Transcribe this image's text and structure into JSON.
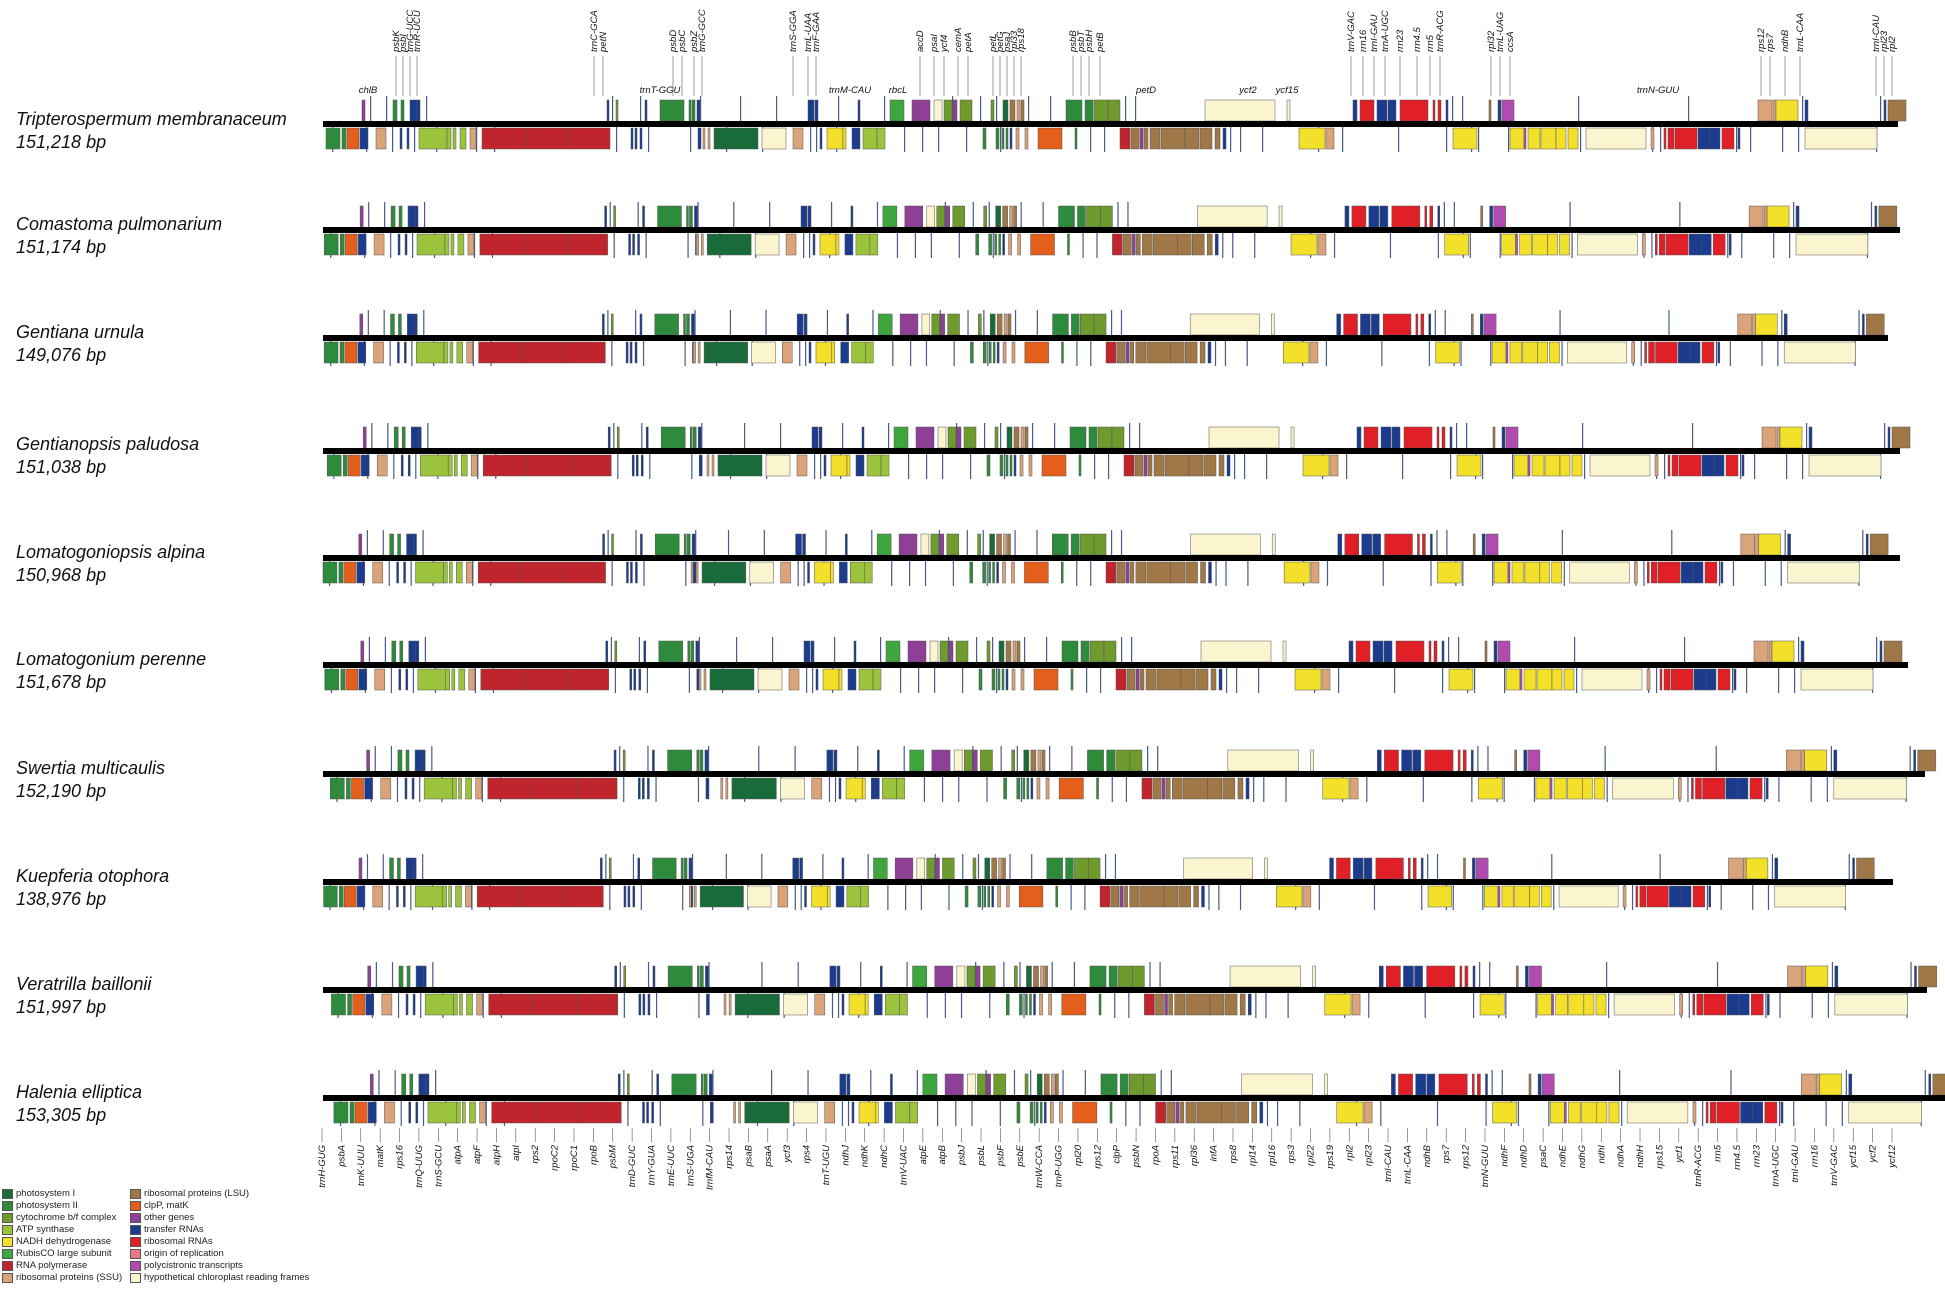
{
  "genomes": [
    {
      "name": "Tripterospermum membranaceum",
      "length": "151,218 bp"
    },
    {
      "name": "Comastoma pulmonarium",
      "length": "151,174 bp"
    },
    {
      "name": "Gentiana urnula",
      "length": "149,076 bp"
    },
    {
      "name": "Gentianopsis paludosa",
      "length": "151,038 bp"
    },
    {
      "name": "Lomatogoniopsis alpina",
      "length": "150,968 bp"
    },
    {
      "name": "Lomatogonium perenne",
      "length": "151,678 bp"
    },
    {
      "name": "Swertia multicaulis",
      "length": "152,190 bp"
    },
    {
      "name": "Kuepferia otophora",
      "length": "138,976 bp"
    },
    {
      "name": "Veratrilla baillonii",
      "length": "151,997 bp"
    },
    {
      "name": "Halenia elliptica",
      "length": "153,305 bp"
    }
  ],
  "legend": {
    "col1": [
      {
        "label": "photosystem I",
        "color": "#1a6b3a"
      },
      {
        "label": "photosystem II",
        "color": "#2e8b3c"
      },
      {
        "label": "cytochrome b/f complex",
        "color": "#6f9a2e"
      },
      {
        "label": "ATP synthase",
        "color": "#9bc43c"
      },
      {
        "label": "NADH dehydrogenase",
        "color": "#f2e02a"
      },
      {
        "label": "RubisCO large subunit",
        "color": "#3fa53f"
      },
      {
        "label": "RNA polymerase",
        "color": "#c0242d"
      },
      {
        "label": "ribosomal proteins (SSU)",
        "color": "#dba37a"
      }
    ],
    "col2": [
      {
        "label": "ribosomal proteins (LSU)",
        "color": "#a07848"
      },
      {
        "label": "clpP, matK",
        "color": "#e45f1c"
      },
      {
        "label": "other genes",
        "color": "#8e3f96"
      },
      {
        "label": "transfer RNAs",
        "color": "#1a3b8e"
      },
      {
        "label": "ribosomal RNAs",
        "color": "#e01f26"
      },
      {
        "label": "origin of replication",
        "color": "#e87b86"
      },
      {
        "label": "polycistronic transcripts",
        "color": "#b24bb0"
      },
      {
        "label": "hypothetical chloroplast reading frames",
        "color": "#fbf5cf"
      }
    ]
  },
  "top_labels": [
    {
      "text": "chlB",
      "orient": "h"
    },
    {
      "text": "psbK",
      "orient": "v"
    },
    {
      "text": "psbI",
      "orient": "v"
    },
    {
      "text": "trnG-UCC",
      "orient": "v"
    },
    {
      "text": "trnR-UCU",
      "orient": "v"
    },
    {
      "text": "trnC-GCA",
      "orient": "v"
    },
    {
      "text": "petN",
      "orient": "v"
    },
    {
      "text": "trnT-GGU",
      "orient": "h"
    },
    {
      "text": "psbD",
      "orient": "v"
    },
    {
      "text": "psbC",
      "orient": "v"
    },
    {
      "text": "psbZ",
      "orient": "v"
    },
    {
      "text": "trnG-GCC",
      "orient": "v"
    },
    {
      "text": "trnS-GGA",
      "orient": "v"
    },
    {
      "text": "trnL-UAA",
      "orient": "v"
    },
    {
      "text": "trnF-GAA",
      "orient": "v"
    },
    {
      "text": "trnM-CAU",
      "orient": "h"
    },
    {
      "text": "rbcL",
      "orient": "h"
    },
    {
      "text": "accD",
      "orient": "v"
    },
    {
      "text": "psaI",
      "orient": "v"
    },
    {
      "text": "ycf4",
      "orient": "v"
    },
    {
      "text": "cemA",
      "orient": "v"
    },
    {
      "text": "petA",
      "orient": "v"
    },
    {
      "text": "petL",
      "orient": "v"
    },
    {
      "text": "petG",
      "orient": "v"
    },
    {
      "text": "psaJ",
      "orient": "v"
    },
    {
      "text": "rpl33",
      "orient": "v"
    },
    {
      "text": "rps18",
      "orient": "v"
    },
    {
      "text": "psbB",
      "orient": "v"
    },
    {
      "text": "psbT",
      "orient": "v"
    },
    {
      "text": "psbH",
      "orient": "v"
    },
    {
      "text": "petB",
      "orient": "v"
    },
    {
      "text": "petD",
      "orient": "h"
    },
    {
      "text": "ycf2",
      "orient": "h"
    },
    {
      "text": "ycf15",
      "orient": "h"
    },
    {
      "text": "trnV-GAC",
      "orient": "v"
    },
    {
      "text": "rrn16",
      "orient": "v"
    },
    {
      "text": "trnI-GAU",
      "orient": "v"
    },
    {
      "text": "trnA-UGC",
      "orient": "v"
    },
    {
      "text": "rrn23",
      "orient": "v"
    },
    {
      "text": "rrn4.5",
      "orient": "v"
    },
    {
      "text": "rrn5",
      "orient": "v"
    },
    {
      "text": "trnR-ACG",
      "orient": "v"
    },
    {
      "text": "rpl32",
      "orient": "v"
    },
    {
      "text": "trnL-UAG",
      "orient": "v"
    },
    {
      "text": "ccsA",
      "orient": "v"
    },
    {
      "text": "trnN-GUU",
      "orient": "h"
    },
    {
      "text": "rps12",
      "orient": "v"
    },
    {
      "text": "rps7",
      "orient": "v"
    },
    {
      "text": "ndhB",
      "orient": "v"
    },
    {
      "text": "trnL-CAA",
      "orient": "v"
    },
    {
      "text": "trnI-CAU",
      "orient": "v"
    },
    {
      "text": "rpl23",
      "orient": "v"
    },
    {
      "text": "rpl2",
      "orient": "v"
    }
  ],
  "bottom_labels": [
    {
      "text": "trnH-GUG"
    },
    {
      "text": "psbA"
    },
    {
      "text": "trnK-UUU"
    },
    {
      "text": "matK"
    },
    {
      "text": "rps16"
    },
    {
      "text": "trnQ-UUG"
    },
    {
      "text": "trnS-GCU"
    },
    {
      "text": "atpA"
    },
    {
      "text": "atpF"
    },
    {
      "text": "atpH"
    },
    {
      "text": "atpI"
    },
    {
      "text": "rps2"
    },
    {
      "text": "rpoC2"
    },
    {
      "text": "rpoC1"
    },
    {
      "text": "rpoB"
    },
    {
      "text": "psbM"
    },
    {
      "text": "trnD-GUC"
    },
    {
      "text": "trnY-GUA"
    },
    {
      "text": "trnE-UUC"
    },
    {
      "text": "trnS-UGA"
    },
    {
      "text": "trnfM-CAU"
    },
    {
      "text": "rps14"
    },
    {
      "text": "psaB"
    },
    {
      "text": "psaA"
    },
    {
      "text": "ycf3"
    },
    {
      "text": "rps4"
    },
    {
      "text": "trnT-UGU"
    },
    {
      "text": "ndhJ"
    },
    {
      "text": "ndhK"
    },
    {
      "text": "ndhC"
    },
    {
      "text": "trnV-UAC"
    },
    {
      "text": "atpE"
    },
    {
      "text": "atpB"
    },
    {
      "text": "psbJ"
    },
    {
      "text": "psbL"
    },
    {
      "text": "psbF"
    },
    {
      "text": "psbE"
    },
    {
      "text": "trnW-CCA"
    },
    {
      "text": "trnP-UGG"
    },
    {
      "text": "rpl20"
    },
    {
      "text": "rps12"
    },
    {
      "text": "clpP"
    },
    {
      "text": "psbN"
    },
    {
      "text": "rpoA"
    },
    {
      "text": "rps11"
    },
    {
      "text": "rpl36"
    },
    {
      "text": "infA"
    },
    {
      "text": "rps8"
    },
    {
      "text": "rpl14"
    },
    {
      "text": "rpl16"
    },
    {
      "text": "rps3"
    },
    {
      "text": "rpl22"
    },
    {
      "text": "rps19"
    },
    {
      "text": "rpl2"
    },
    {
      "text": "rpl23"
    },
    {
      "text": "trnI-CAU"
    },
    {
      "text": "trnL-CAA"
    },
    {
      "text": "ndhB"
    },
    {
      "text": "rps7"
    },
    {
      "text": "rps12"
    },
    {
      "text": "trnN-GUU"
    },
    {
      "text": "ndhF"
    },
    {
      "text": "ndhD"
    },
    {
      "text": "psaC"
    },
    {
      "text": "ndhE"
    },
    {
      "text": "ndhG"
    },
    {
      "text": "ndhI"
    },
    {
      "text": "ndhA"
    },
    {
      "text": "ndhH"
    },
    {
      "text": "rps15"
    },
    {
      "text": "ycf1"
    },
    {
      "text": "trnR-ACG"
    },
    {
      "text": "rrn5"
    },
    {
      "text": "rrn4.5"
    },
    {
      "text": "rrn23"
    },
    {
      "text": "trnA-UGC"
    },
    {
      "text": "trnI-GAU"
    },
    {
      "text": "rrn16"
    },
    {
      "text": "trnV-GAC"
    },
    {
      "text": "ycf15"
    },
    {
      "text": "ycf2"
    },
    {
      "text": "ycf12"
    }
  ]
}
